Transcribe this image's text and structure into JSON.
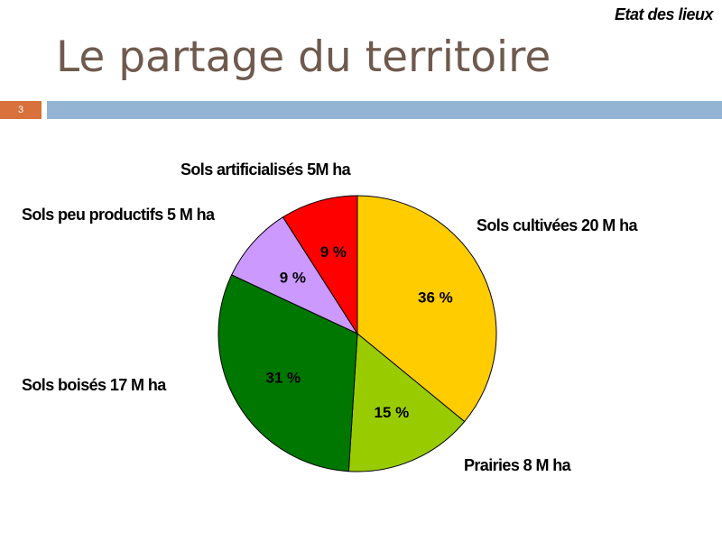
{
  "header": {
    "tag": "Etat des lieux",
    "title": "Le partage du territoire",
    "page_number": "3"
  },
  "chart_data": {
    "type": "pie",
    "title": "",
    "start_angle_deg": 0,
    "direction": "clockwise",
    "slices": [
      {
        "label": "Sols cultivées 20 M ha",
        "value": 36,
        "pct_label": "36 %",
        "color": "#ffcc00"
      },
      {
        "label": "Prairies 8 M ha",
        "value": 15,
        "pct_label": "15 %",
        "color": "#99cc00"
      },
      {
        "label": "Sols boisés 17 M ha",
        "value": 31,
        "pct_label": "31 %",
        "color": "#007700"
      },
      {
        "label": "Sols peu productifs 5 M ha",
        "value": 9,
        "pct_label": "9 %",
        "color": "#cc99ff"
      },
      {
        "label": "Sols artificialisés 5M ha",
        "value": 9,
        "pct_label": "9 %",
        "color": "#ff0000"
      }
    ]
  }
}
